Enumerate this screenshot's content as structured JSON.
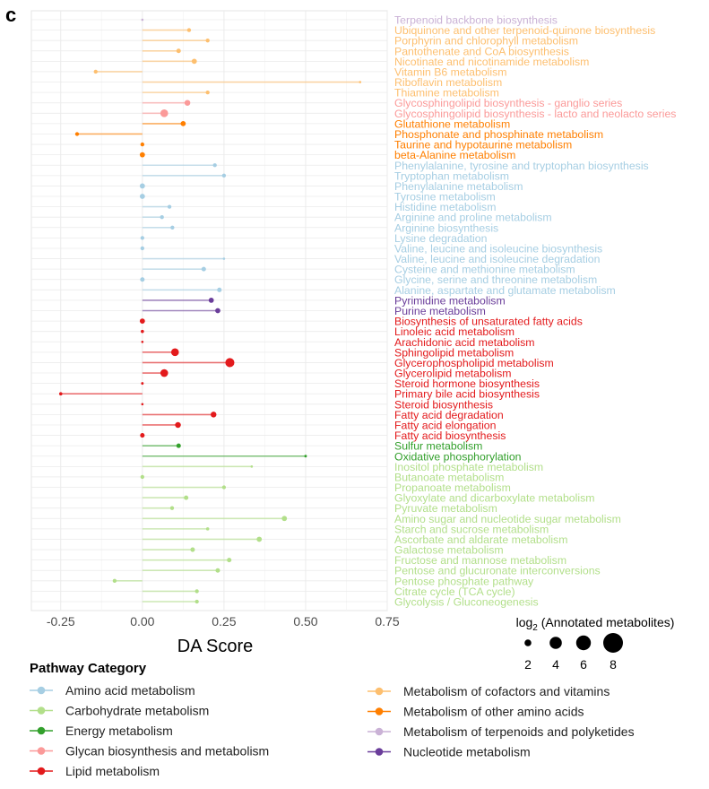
{
  "panel_label": "c",
  "colors": {
    "Amino acid metabolism": "#a6cee3",
    "Carbohydrate metabolism": "#b2df8a",
    "Energy metabolism": "#33a02c",
    "Glycan biosynthesis and metabolism": "#fb9a99",
    "Lipid metabolism": "#e31a1c",
    "Metabolism of cofactors and vitamins": "#fdbf6f",
    "Metabolism of other amino acids": "#ff7f00",
    "Metabolism of terpenoids and polyketides": "#cab2d6",
    "Nucleotide metabolism": "#6a3d9a"
  },
  "chart_data": {
    "type": "lollipop",
    "xlabel": "DA Score",
    "xlim": [
      -0.34,
      0.75
    ],
    "xticks": [
      -0.25,
      0.0,
      0.25,
      0.5,
      0.75
    ],
    "xtick_labels": [
      "-0.25",
      "0.00",
      "0.25",
      "0.50",
      "0.75"
    ],
    "grid": true,
    "size_legend": {
      "title_base": "log",
      "title_sub": "2",
      "title_rest": " (Annotated metabolites)",
      "values": [
        2,
        4,
        6,
        8
      ],
      "labels": [
        "2",
        "4",
        "6",
        "8"
      ]
    },
    "color_legend": {
      "title": "Pathway Category",
      "placement": "bottom",
      "entries": [
        "Amino acid metabolism",
        "Carbohydrate metabolism",
        "Energy metabolism",
        "Glycan biosynthesis and metabolism",
        "Lipid metabolism",
        "Metabolism of cofactors and vitamins",
        "Metabolism of other amino acids",
        "Metabolism of terpenoids and polyketides",
        "Nucleotide metabolism"
      ]
    },
    "rows": [
      {
        "pathway": "Terpenoid backbone biosynthesis",
        "category": "Metabolism of terpenoids and polyketides",
        "da": 0.0,
        "size": 1
      },
      {
        "pathway": "Ubiquinone and other terpenoid-quinone biosynthesis",
        "category": "Metabolism of cofactors and vitamins",
        "da": 0.143,
        "size": 3
      },
      {
        "pathway": "Porphyrin and chlorophyll metabolism",
        "category": "Metabolism of cofactors and vitamins",
        "da": 0.2,
        "size": 3
      },
      {
        "pathway": "Pantothenate and CoA biosynthesis",
        "category": "Metabolism of cofactors and vitamins",
        "da": 0.111,
        "size": 3.5
      },
      {
        "pathway": "Nicotinate and nicotinamide metabolism",
        "category": "Metabolism of cofactors and vitamins",
        "da": 0.159,
        "size": 4
      },
      {
        "pathway": "Vitamin B6 metabolism",
        "category": "Metabolism of cofactors and vitamins",
        "da": -0.143,
        "size": 3
      },
      {
        "pathway": "Riboflavin metabolism",
        "category": "Metabolism of cofactors and vitamins",
        "da": 0.667,
        "size": 1
      },
      {
        "pathway": "Thiamine metabolism",
        "category": "Metabolism of cofactors and vitamins",
        "da": 0.2,
        "size": 3
      },
      {
        "pathway": "Glycosphingolipid biosynthesis - ganglio series",
        "category": "Glycan biosynthesis and metabolism",
        "da": 0.138,
        "size": 4.5
      },
      {
        "pathway": "Glycosphingolipid biosynthesis - lacto and neolacto series",
        "category": "Glycan biosynthesis and metabolism",
        "da": 0.067,
        "size": 6
      },
      {
        "pathway": "Glutathione metabolism",
        "category": "Metabolism of other amino acids",
        "da": 0.125,
        "size": 4
      },
      {
        "pathway": "Phosphonate and phosphinate metabolism",
        "category": "Metabolism of other amino acids",
        "da": -0.2,
        "size": 3
      },
      {
        "pathway": "Taurine and hypotaurine metabolism",
        "category": "Metabolism of other amino acids",
        "da": 0.0,
        "size": 3
      },
      {
        "pathway": "beta-Alanine metabolism",
        "category": "Metabolism of other amino acids",
        "da": 0.0,
        "size": 4
      },
      {
        "pathway": "Phenylalanine, tyrosine and tryptophan biosynthesis",
        "category": "Amino acid metabolism",
        "da": 0.222,
        "size": 3
      },
      {
        "pathway": "Tryptophan metabolism",
        "category": "Amino acid metabolism",
        "da": 0.25,
        "size": 3
      },
      {
        "pathway": "Phenylalanine metabolism",
        "category": "Amino acid metabolism",
        "da": 0.0,
        "size": 4
      },
      {
        "pathway": "Tyrosine metabolism",
        "category": "Amino acid metabolism",
        "da": 0.0,
        "size": 4
      },
      {
        "pathway": "Histidine metabolism",
        "category": "Amino acid metabolism",
        "da": 0.083,
        "size": 3
      },
      {
        "pathway": "Arginine and proline metabolism",
        "category": "Amino acid metabolism",
        "da": 0.06,
        "size": 3
      },
      {
        "pathway": "Arginine biosynthesis",
        "category": "Amino acid metabolism",
        "da": 0.092,
        "size": 3
      },
      {
        "pathway": "Lysine degradation",
        "category": "Amino acid metabolism",
        "da": 0.0,
        "size": 3
      },
      {
        "pathway": "Valine, leucine and isoleucine biosynthesis",
        "category": "Amino acid metabolism",
        "da": 0.0,
        "size": 3
      },
      {
        "pathway": "Valine, leucine and isoleucine degradation",
        "category": "Amino acid metabolism",
        "da": 0.25,
        "size": 1.5
      },
      {
        "pathway": "Cysteine and methionine metabolism",
        "category": "Amino acid metabolism",
        "da": 0.188,
        "size": 3.5
      },
      {
        "pathway": "Glycine, serine and threonine metabolism",
        "category": "Amino acid metabolism",
        "da": 0.0,
        "size": 3.5
      },
      {
        "pathway": "Alanine, aspartate and glutamate metabolism",
        "category": "Amino acid metabolism",
        "da": 0.236,
        "size": 3.5
      },
      {
        "pathway": "Pyrimidine metabolism",
        "category": "Nucleotide metabolism",
        "da": 0.211,
        "size": 4
      },
      {
        "pathway": "Purine metabolism",
        "category": "Nucleotide metabolism",
        "da": 0.231,
        "size": 4
      },
      {
        "pathway": "Biosynthesis of unsaturated fatty acids",
        "category": "Lipid metabolism",
        "da": 0.0,
        "size": 4
      },
      {
        "pathway": "Linoleic acid metabolism",
        "category": "Lipid metabolism",
        "da": 0.0,
        "size": 2.5
      },
      {
        "pathway": "Arachidonic acid metabolism",
        "category": "Lipid metabolism",
        "da": 0.0,
        "size": 1
      },
      {
        "pathway": "Sphingolipid metabolism",
        "category": "Lipid metabolism",
        "da": 0.1,
        "size": 6
      },
      {
        "pathway": "Glycerophospholipid metabolism",
        "category": "Lipid metabolism",
        "da": 0.268,
        "size": 7
      },
      {
        "pathway": "Glycerolipid metabolism",
        "category": "Lipid metabolism",
        "da": 0.067,
        "size": 6
      },
      {
        "pathway": "Steroid hormone biosynthesis",
        "category": "Lipid metabolism",
        "da": 0.0,
        "size": 2
      },
      {
        "pathway": "Primary bile acid biosynthesis",
        "category": "Lipid metabolism",
        "da": -0.25,
        "size": 2.5
      },
      {
        "pathway": "Steroid biosynthesis",
        "category": "Lipid metabolism",
        "da": 0.0,
        "size": 1
      },
      {
        "pathway": "Fatty acid degradation",
        "category": "Lipid metabolism",
        "da": 0.218,
        "size": 4.5
      },
      {
        "pathway": "Fatty acid elongation",
        "category": "Lipid metabolism",
        "da": 0.109,
        "size": 4.5
      },
      {
        "pathway": "Fatty acid biosynthesis",
        "category": "Lipid metabolism",
        "da": 0.0,
        "size": 3.5
      },
      {
        "pathway": "Sulfur metabolism",
        "category": "Energy metabolism",
        "da": 0.111,
        "size": 3.5
      },
      {
        "pathway": "Oxidative phosphorylation",
        "category": "Energy metabolism",
        "da": 0.5,
        "size": 2
      },
      {
        "pathway": "Inositol phosphate metabolism",
        "category": "Carbohydrate metabolism",
        "da": 0.335,
        "size": 1
      },
      {
        "pathway": "Butanoate metabolism",
        "category": "Carbohydrate metabolism",
        "da": 0.0,
        "size": 3
      },
      {
        "pathway": "Propanoate metabolism",
        "category": "Carbohydrate metabolism",
        "da": 0.25,
        "size": 3
      },
      {
        "pathway": "Glyoxylate and dicarboxylate metabolism",
        "category": "Carbohydrate metabolism",
        "da": 0.134,
        "size": 3.5
      },
      {
        "pathway": "Pyruvate metabolism",
        "category": "Carbohydrate metabolism",
        "da": 0.091,
        "size": 3
      },
      {
        "pathway": "Amino sugar and nucleotide sugar metabolism",
        "category": "Carbohydrate metabolism",
        "da": 0.435,
        "size": 4
      },
      {
        "pathway": "Starch and sucrose metabolism",
        "category": "Carbohydrate metabolism",
        "da": 0.2,
        "size": 2.5
      },
      {
        "pathway": "Ascorbate and aldarate metabolism",
        "category": "Carbohydrate metabolism",
        "da": 0.358,
        "size": 4
      },
      {
        "pathway": "Galactose metabolism",
        "category": "Carbohydrate metabolism",
        "da": 0.154,
        "size": 3.5
      },
      {
        "pathway": "Fructose and mannose metabolism",
        "category": "Carbohydrate metabolism",
        "da": 0.266,
        "size": 3.5
      },
      {
        "pathway": "Pentose and glucuronate interconversions",
        "category": "Carbohydrate metabolism",
        "da": 0.231,
        "size": 3.5
      },
      {
        "pathway": "Pentose phosphate pathway",
        "category": "Carbohydrate metabolism",
        "da": -0.085,
        "size": 3
      },
      {
        "pathway": "Citrate cycle (TCA cycle)",
        "category": "Carbohydrate metabolism",
        "da": 0.167,
        "size": 3
      },
      {
        "pathway": "Glycolysis / Gluconeogenesis",
        "category": "Carbohydrate metabolism",
        "da": 0.167,
        "size": 3
      }
    ]
  }
}
